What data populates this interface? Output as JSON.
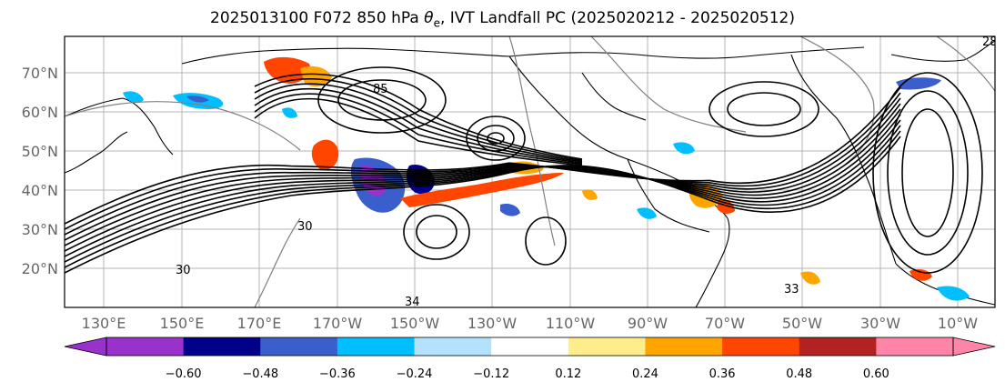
{
  "title": {
    "prefix": "2025013100 F072 850 hPa ",
    "symbol": "θ",
    "symbol_sub": "e",
    "suffix": ", IVT Landfall PC (2025020212 - 2025020512)"
  },
  "map": {
    "lat_labels": [
      "70°N",
      "60°N",
      "50°N",
      "40°N",
      "30°N",
      "20°N"
    ],
    "lon_labels": [
      "130°E",
      "150°E",
      "170°E",
      "170°W",
      "150°W",
      "130°W",
      "110°W",
      "90°W",
      "70°W",
      "50°W",
      "30°W",
      "10°W"
    ],
    "contour_labels": [
      "28",
      "85",
      "30",
      "34",
      "33",
      "30"
    ],
    "fill_colors": {
      "strong_negative": "#9932cc",
      "negative_dark": "#00008b",
      "negative_mid": "#3a5fcd",
      "negative_light": "#00bfff",
      "positive_mid": "#ffa500",
      "positive_strong": "#ff4500"
    }
  },
  "colorbar": {
    "colors": [
      "#9932cc",
      "#00008b",
      "#3a5fcd",
      "#00bfff",
      "#b3e2ff",
      "#ffffff",
      "#ffec8b",
      "#ffa500",
      "#ff4500",
      "#b22222",
      "#ff85a8"
    ],
    "under_color": "#9932cc",
    "over_color": "#ff85a8",
    "tick_labels": [
      "−0.60",
      "−0.48",
      "−0.36",
      "−0.24",
      "−0.12",
      "0.12",
      "0.24",
      "0.36",
      "0.48",
      "0.60"
    ]
  }
}
